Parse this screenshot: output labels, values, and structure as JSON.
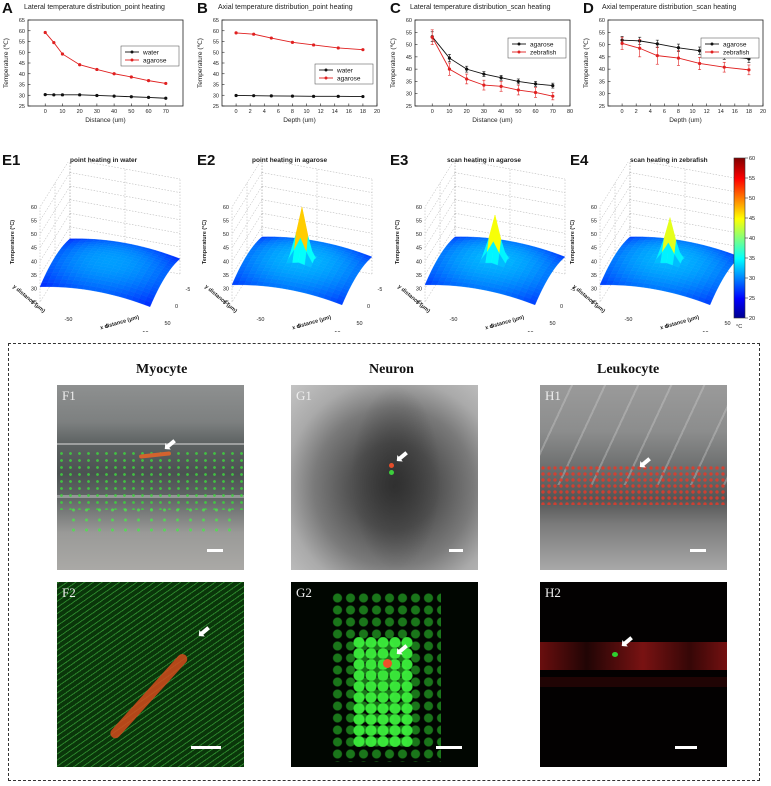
{
  "panels": {
    "A": {
      "letter": "A",
      "title": "Lateral temperature distribution_point heating",
      "xlabel": "Distance (um)",
      "ylabel": "Temperature (℃)"
    },
    "B": {
      "letter": "B",
      "title": "Axial temperature distribution_point heating",
      "xlabel": "Depth (um)",
      "ylabel": "Temperature (℃)"
    },
    "C": {
      "letter": "C",
      "title": "Lateral temperature distribution_scan heating",
      "xlabel": "Distance (um)",
      "ylabel": "Temperature (℃)"
    },
    "D": {
      "letter": "D",
      "title": "Axial temperature distribution_scan heating",
      "xlabel": "Depth (um)",
      "ylabel": "Temperature (℃)"
    }
  },
  "surfaces": [
    {
      "letter": "E1",
      "title": "point heating in water",
      "zlabel": "Temperature (°C)",
      "xlabel": "x distance (μm)",
      "ylabel": "y distance (μm)",
      "zticks": [
        "25",
        "30",
        "35",
        "40",
        "45",
        "50",
        "55",
        "60"
      ]
    },
    {
      "letter": "E2",
      "title": "point heating in agarose",
      "zlabel": "Temperature (°C)",
      "xlabel": "x distance (μm)",
      "ylabel": "y distance (μm)",
      "zticks": [
        "25",
        "30",
        "35",
        "40",
        "45",
        "50",
        "55",
        "60"
      ]
    },
    {
      "letter": "E3",
      "title": "scan heating in agarose",
      "zlabel": "Temperature (°C)",
      "xlabel": "x distance (μm)",
      "ylabel": "y distance (μm)",
      "zticks": [
        "25",
        "30",
        "35",
        "40",
        "45",
        "50",
        "55",
        "60"
      ]
    },
    {
      "letter": "E4",
      "title": "scan heating in zebrafish",
      "zlabel": "Temperature (°C)",
      "xlabel": "x distance (μm)",
      "ylabel": "y distance (μm)",
      "zticks": [
        "25",
        "30",
        "35",
        "40",
        "45",
        "50",
        "55",
        "60"
      ]
    }
  ],
  "surface_ticks": {
    "x": [
      "-50",
      "0",
      "50"
    ],
    "y": [
      "50",
      "0",
      "-50"
    ]
  },
  "colorbar": {
    "ticks": [
      "60",
      "55",
      "50",
      "45",
      "40",
      "35",
      "30",
      "25",
      "20"
    ],
    "unit": "°C"
  },
  "columns": [
    "Myocyte",
    "Neuron",
    "Leukocyte"
  ],
  "micro_labels": [
    "F1",
    "G1",
    "H1",
    "F2",
    "G2",
    "H2"
  ],
  "chart_data": [
    {
      "type": "line",
      "title": "Lateral temperature distribution_point heating",
      "xlabel": "Distance (um)",
      "ylabel": "Temperature (℃)",
      "xlim": [
        -10,
        80
      ],
      "ylim": [
        25,
        65
      ],
      "xticks": [
        0,
        10,
        20,
        30,
        40,
        50,
        60,
        70
      ],
      "yticks": [
        25,
        30,
        35,
        40,
        45,
        50,
        55,
        60,
        65
      ],
      "legend": "right",
      "series": [
        {
          "name": "water",
          "color": "#111111",
          "x": [
            0,
            5,
            10,
            20,
            30,
            40,
            50,
            60,
            70
          ],
          "y": [
            30.3,
            30.2,
            30.2,
            30.2,
            29.9,
            29.6,
            29.3,
            29.0,
            28.6
          ]
        },
        {
          "name": "agarose",
          "color": "#e02020",
          "x": [
            0,
            5,
            10,
            20,
            30,
            40,
            50,
            60,
            70
          ],
          "y": [
            59.2,
            54.5,
            49.2,
            44.2,
            42.0,
            40.0,
            38.5,
            36.8,
            35.5
          ]
        }
      ]
    },
    {
      "type": "line",
      "title": "Axial temperature distribution_point heating",
      "xlabel": "Depth (um)",
      "ylabel": "Temperature (℃)",
      "xlim": [
        -2,
        20
      ],
      "ylim": [
        25,
        65
      ],
      "xticks": [
        0,
        2,
        4,
        6,
        8,
        10,
        12,
        14,
        16,
        18,
        20
      ],
      "yticks": [
        25,
        30,
        35,
        40,
        45,
        50,
        55,
        60,
        65
      ],
      "legend": "right",
      "series": [
        {
          "name": "water",
          "color": "#111111",
          "x": [
            0,
            2.5,
            5,
            8,
            11,
            14.5,
            18
          ],
          "y": [
            29.9,
            29.8,
            29.7,
            29.6,
            29.5,
            29.5,
            29.4
          ]
        },
        {
          "name": "agarose",
          "color": "#e02020",
          "x": [
            0,
            2.5,
            5,
            8,
            11,
            14.5,
            18
          ],
          "y": [
            59.0,
            58.4,
            56.6,
            54.6,
            53.4,
            52.0,
            51.2
          ]
        }
      ]
    },
    {
      "type": "line",
      "title": "Lateral temperature distribution_scan heating",
      "xlabel": "Distance (um)",
      "ylabel": "Temperature (℃)",
      "xlim": [
        -10,
        80
      ],
      "ylim": [
        25,
        60
      ],
      "xticks": [
        0,
        10,
        20,
        30,
        40,
        50,
        60,
        70,
        80
      ],
      "yticks": [
        25,
        30,
        35,
        40,
        45,
        50,
        55,
        60
      ],
      "legend": "top-right",
      "series": [
        {
          "name": "agarose",
          "color": "#111111",
          "x": [
            0,
            10,
            20,
            30,
            40,
            50,
            60,
            70
          ],
          "y": [
            53.2,
            44.5,
            40.0,
            38.0,
            36.5,
            35.0,
            34.0,
            33.3
          ],
          "err": [
            2.0,
            1.5,
            1.2,
            1.0,
            1.0,
            1.0,
            1.0,
            1.0
          ]
        },
        {
          "name": "zebrafish",
          "color": "#e02020",
          "x": [
            0,
            10,
            20,
            30,
            40,
            50,
            60,
            70
          ],
          "y": [
            53.0,
            40.0,
            36.0,
            33.5,
            33.0,
            31.5,
            30.5,
            29.0
          ],
          "err": [
            3.0,
            2.5,
            2.0,
            2.0,
            2.0,
            2.0,
            2.0,
            1.5
          ]
        }
      ]
    },
    {
      "type": "line",
      "title": "Axial temperature distribution_scan heating",
      "xlabel": "Depth (um)",
      "ylabel": "Temperature (℃)",
      "xlim": [
        -2,
        20
      ],
      "ylim": [
        25,
        60
      ],
      "xticks": [
        0,
        2,
        4,
        6,
        8,
        10,
        12,
        14,
        16,
        18,
        20
      ],
      "yticks": [
        25,
        30,
        35,
        40,
        45,
        50,
        55,
        60
      ],
      "legend": "top-right",
      "series": [
        {
          "name": "agarose",
          "color": "#111111",
          "x": [
            0,
            2.5,
            5,
            8,
            11,
            14.5,
            18
          ],
          "y": [
            51.8,
            51.5,
            50.3,
            48.7,
            47.5,
            45.5,
            44.2
          ],
          "err": [
            1.5,
            1.5,
            1.5,
            1.5,
            1.5,
            1.5,
            1.5
          ]
        },
        {
          "name": "zebrafish",
          "color": "#e02020",
          "x": [
            0,
            2.5,
            5,
            8,
            11,
            14.5,
            18
          ],
          "y": [
            50.5,
            48.5,
            45.5,
            44.5,
            42.3,
            40.8,
            39.7
          ],
          "err": [
            2.5,
            3.5,
            3.5,
            3.0,
            2.5,
            2.0,
            2.0
          ]
        }
      ]
    }
  ]
}
